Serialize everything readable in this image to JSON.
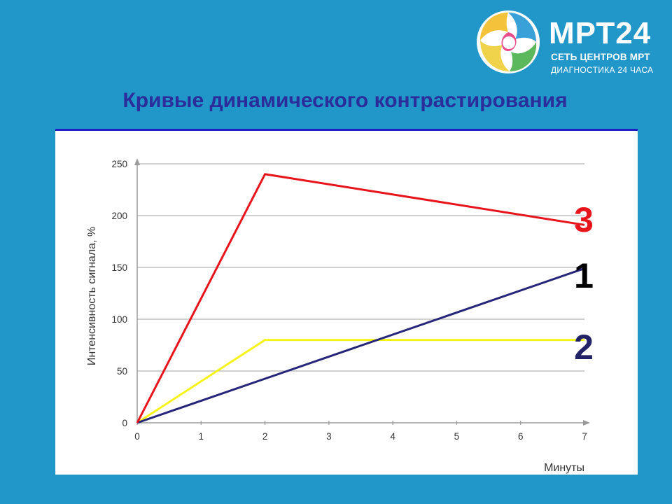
{
  "logo": {
    "icon": "mrt24-swirl-logo",
    "name": "МРТ24",
    "line1": "СЕТЬ ЦЕНТРОВ МРТ",
    "line2": "ДИАГНОСТИКА 24 ЧАСА"
  },
  "slide": {
    "title": "Кривые динамического контрастирования"
  },
  "colors": {
    "background": "#2196c8",
    "title": "#2b2e9a",
    "rule": "#1f22c2",
    "series_3": "#e8141b",
    "series_1": "#25257a",
    "series_2": "#f4f41c"
  },
  "chart_data": {
    "type": "line",
    "xlabel": "Минуты",
    "ylabel": "Интенсивность сигнала, %",
    "xlim": [
      0,
      7
    ],
    "ylim": [
      0,
      250
    ],
    "x_ticks": [
      "0",
      "1",
      "2",
      "3",
      "4",
      "5",
      "6",
      "7"
    ],
    "y_ticks": [
      "0",
      "50",
      "100",
      "150",
      "200",
      "250"
    ],
    "grid": "horizontal",
    "series": [
      {
        "name": "3",
        "color": "#e8141b",
        "x": [
          0,
          2,
          7
        ],
        "y": [
          0,
          240,
          191
        ]
      },
      {
        "name": "1",
        "color": "#25257a",
        "x": [
          0,
          7
        ],
        "y": [
          0,
          149
        ]
      },
      {
        "name": "2",
        "color": "#f4f41c",
        "x": [
          0,
          2,
          7
        ],
        "y": [
          0,
          80,
          80
        ]
      }
    ]
  }
}
